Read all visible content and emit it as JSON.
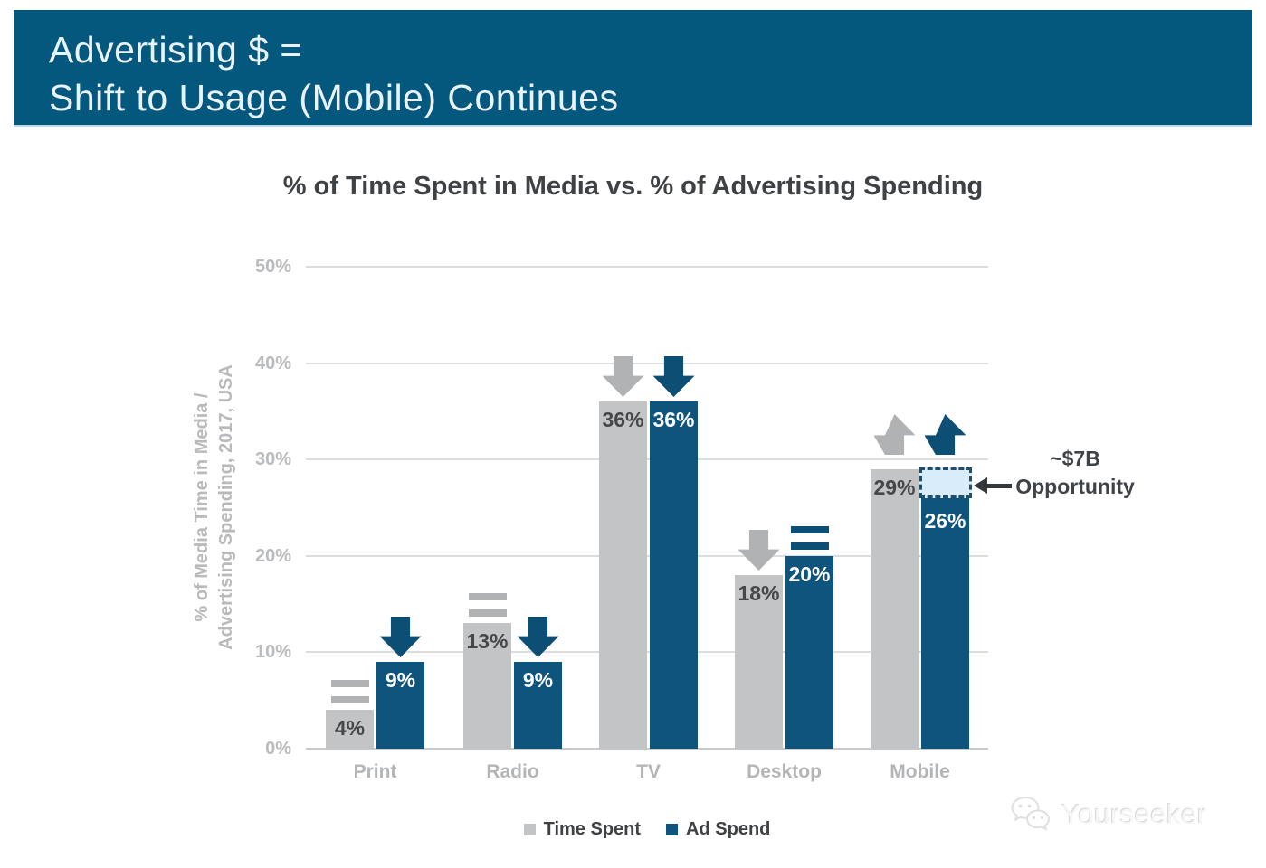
{
  "header": {
    "line1": "Advertising $ =",
    "line2": "Shift to Usage (Mobile) Continues",
    "bg_color": "#04577d",
    "text_color": "#e9f3fb"
  },
  "chart_data": {
    "type": "bar",
    "title": "% of Time Spent in Media vs. % of Advertising Spending",
    "ylabel": "% of Media Time in Media / Advertising Spending, 2017, USA",
    "ylabel_lines": [
      "% of Media Time in Media /",
      "Advertising Spending, 2017, USA"
    ],
    "xlabel": "",
    "ylim": [
      0,
      50
    ],
    "yticks": [
      "0%",
      "10%",
      "20%",
      "30%",
      "40%",
      "50%"
    ],
    "grid": true,
    "legend_position": "bottom",
    "categories": [
      "Print",
      "Radio",
      "TV",
      "Desktop",
      "Mobile"
    ],
    "series": [
      {
        "name": "Time Spent",
        "color": "#c3c4c6",
        "marker_color": "#b1b2b4",
        "label_style": "dark",
        "values": [
          4,
          13,
          36,
          18,
          29
        ],
        "labels": [
          "4%",
          "13%",
          "36%",
          "18%",
          "29%"
        ],
        "trend": [
          "equal",
          "equal",
          "down",
          "down",
          "up"
        ]
      },
      {
        "name": "Ad Spend",
        "color": "#0e547c",
        "marker_color": "#0d4e75",
        "label_style": "light",
        "values": [
          9,
          9,
          36,
          20,
          26
        ],
        "labels": [
          "9%",
          "9%",
          "36%",
          "20%",
          "26%"
        ],
        "trend": [
          "down",
          "down",
          "down",
          "equal",
          "up"
        ]
      }
    ],
    "opportunity_box": {
      "category": "Mobile",
      "series": "Ad Spend",
      "from": 26,
      "to": 29,
      "fill": "#d9ecf9",
      "border": "#1e4f70"
    }
  },
  "annotation": {
    "line1": "~$7B",
    "line2": "Opportunity",
    "arrow_color": "#35383b"
  },
  "legend": {
    "items": [
      {
        "label": "Time Spent",
        "color": "#c3c4c6"
      },
      {
        "label": "Ad Spend",
        "color": "#0e547c"
      }
    ]
  },
  "watermark": {
    "text": "Yourseeker",
    "icon": "wechat-logo"
  }
}
